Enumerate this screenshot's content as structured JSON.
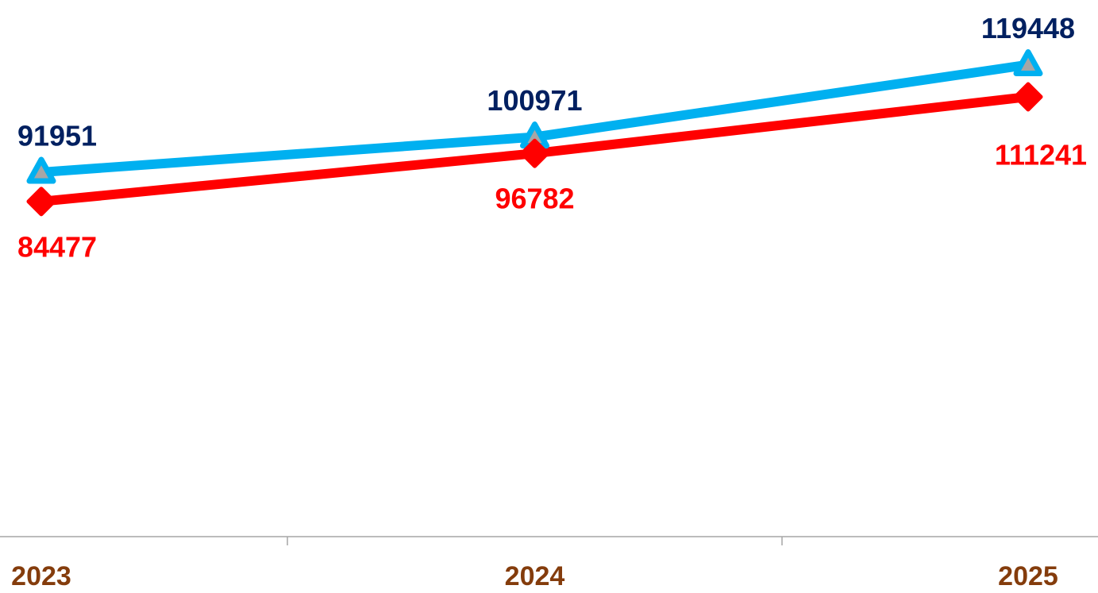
{
  "chart_data": {
    "type": "line",
    "categories": [
      "2023",
      "2024",
      "2025"
    ],
    "series": [
      {
        "color": "#00b0f0",
        "label_color": "#002060",
        "marker": "triangle",
        "values": [
          91951,
          100971,
          119448
        ]
      },
      {
        "color": "#ff0000",
        "label_color": "#ff0000",
        "marker": "diamond",
        "values": [
          84477,
          96782,
          111241
        ]
      }
    ],
    "category_label_color": "#843c0c",
    "ylim": [
      0,
      136000
    ]
  }
}
